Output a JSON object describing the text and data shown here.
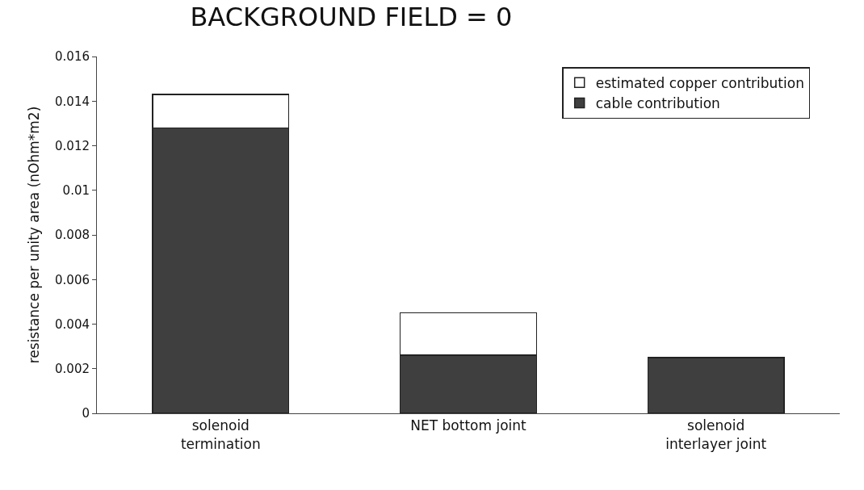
{
  "chart_data": {
    "type": "bar",
    "title": "BACKGROUND FIELD = 0",
    "ylabel": "resistance per unity area (nOhm*m2)",
    "categories": [
      "solenoid\ntermination",
      "NET bottom joint",
      "solenoid\ninterlayer joint"
    ],
    "stacked": true,
    "series": [
      {
        "name": "cable contribution",
        "color": "#3f3f3f",
        "values": [
          0.0128,
          0.0026,
          0.0025
        ]
      },
      {
        "name": "estimated copper contribution",
        "color": "#ffffff",
        "values": [
          0.0015,
          0.0019,
          null
        ]
      }
    ],
    "ylim": [
      0,
      0.016
    ],
    "yticks": [
      0,
      0.002,
      0.004,
      0.006,
      0.008,
      0.01,
      0.012,
      0.014,
      0.016
    ],
    "legend": "top right"
  }
}
